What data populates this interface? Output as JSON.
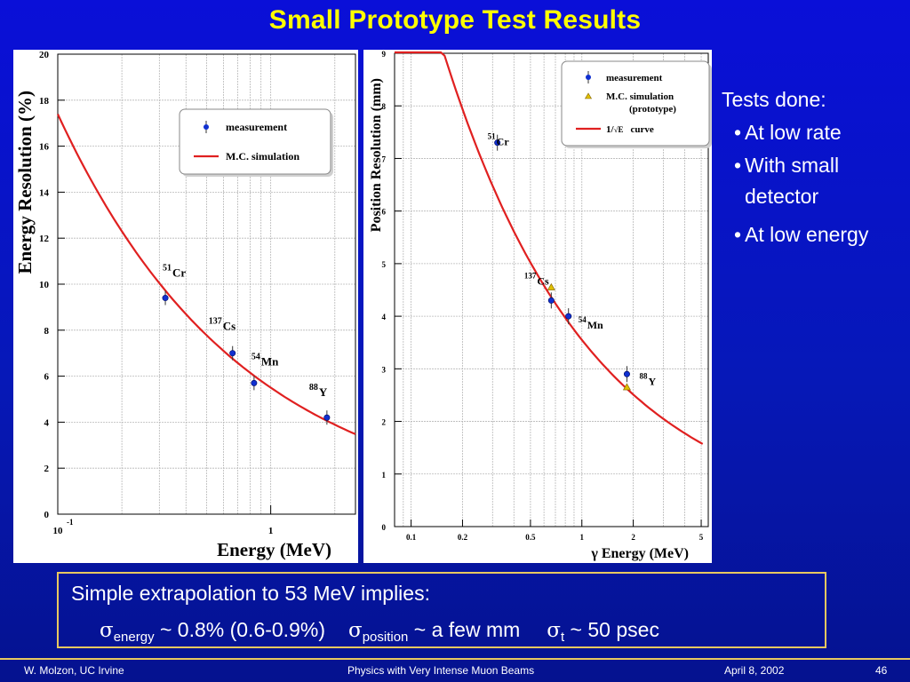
{
  "slide": {
    "title": "Small Prototype  Test Results",
    "page_number": "46",
    "footer_left": "W. Molzon, UC Irvine",
    "footer_center": "Physics with Very Intense Muon Beams",
    "footer_right": "April 8, 2002"
  },
  "tests": {
    "heading": "Tests done:",
    "items": [
      {
        "bullet": "•",
        "line1": "At low rate",
        "line2": ""
      },
      {
        "bullet": "•",
        "line1": "With small",
        "line2": "detector"
      },
      {
        "bullet": "•",
        "line1": "At low energy",
        "line2": ""
      }
    ]
  },
  "summary": {
    "line1": "Simple extrapolation to 53 MeV implies:",
    "sigma": "σ",
    "energy_sub": "energy",
    "energy_val": " ~ 0.8% (0.6-0.9%)",
    "position_sub": "position",
    "position_val": " ~ a few mm",
    "t_sub": "t",
    "t_val": " ~ 50 psec"
  },
  "colors": {
    "background": "#0a0fd8",
    "title": "#ffff00",
    "curve": "#e02020",
    "marker": "#1030d0",
    "mc_marker": "#e0c000",
    "frame": "#e8c860"
  },
  "chart_data": [
    {
      "type": "scatter",
      "title": "",
      "xlabel": "Energy (MeV)",
      "ylabel": "Energy Resolution (%)",
      "xscale": "log",
      "xlim": [
        0.1,
        2.5
      ],
      "ylim": [
        0,
        20
      ],
      "yticks": [
        0,
        2,
        4,
        6,
        8,
        10,
        12,
        14,
        16,
        18,
        20
      ],
      "xtick_labels": [
        {
          "x": 0.1,
          "base": "10",
          "exp": "-1"
        },
        {
          "x": 1,
          "base": "1",
          "exp": ""
        }
      ],
      "legend_placement": "top-right",
      "grid": true,
      "series": [
        {
          "name": "measurement",
          "points": [
            {
              "x": 0.32,
              "y": 9.4,
              "iso": "51",
              "el": "Cr"
            },
            {
              "x": 0.662,
              "y": 7.0,
              "iso": "137",
              "el": "Cs"
            },
            {
              "x": 0.835,
              "y": 5.7,
              "iso": "54",
              "el": "Mn"
            },
            {
              "x": 1.836,
              "y": 4.2,
              "iso": "88",
              "el": "Y"
            }
          ]
        },
        {
          "name": "M.C. simulation",
          "curve_constant": 5.5,
          "x_start": 0.1,
          "x_end": 2.5
        }
      ]
    },
    {
      "type": "scatter",
      "title": "",
      "xlabel": "γ  Energy (MeV)",
      "ylabel": "Position Resolution (mm)",
      "xscale": "log",
      "xlim": [
        0.08,
        5.5
      ],
      "ylim": [
        0,
        9
      ],
      "yticks": [
        0,
        1,
        2,
        3,
        4,
        5,
        6,
        7,
        8,
        9
      ],
      "xticks": [
        0.1,
        0.2,
        0.5,
        1,
        2,
        5
      ],
      "xtick_labels": [
        "0.1",
        "0.2",
        "0.5",
        "1",
        "2",
        "5"
      ],
      "legend_placement": "top-right",
      "grid": true,
      "series": [
        {
          "name": "measurement",
          "points": [
            {
              "x": 0.32,
              "y": 7.3,
              "iso": "51",
              "el": "Cr"
            },
            {
              "x": 0.662,
              "y": 4.3,
              "iso": "137",
              "el": "Cs"
            },
            {
              "x": 0.835,
              "y": 4.0,
              "iso": "54",
              "el": "Mn"
            },
            {
              "x": 1.836,
              "y": 2.9,
              "iso": "88",
              "el": "Y"
            }
          ]
        },
        {
          "name": "M.C. simulation (prototype)",
          "legend_line1": "M.C. simulation",
          "legend_line2": "(prototype)",
          "points": [
            {
              "x": 0.662,
              "y": 4.55
            },
            {
              "x": 1.836,
              "y": 2.65
            }
          ]
        },
        {
          "name": "1/√E curve",
          "legend_prefix": "1/",
          "legend_sqrt": "√E",
          "legend_suffix": "curve",
          "curve_constant": 3.55,
          "x_start": 0.08,
          "x_end": 5.1
        }
      ]
    }
  ]
}
